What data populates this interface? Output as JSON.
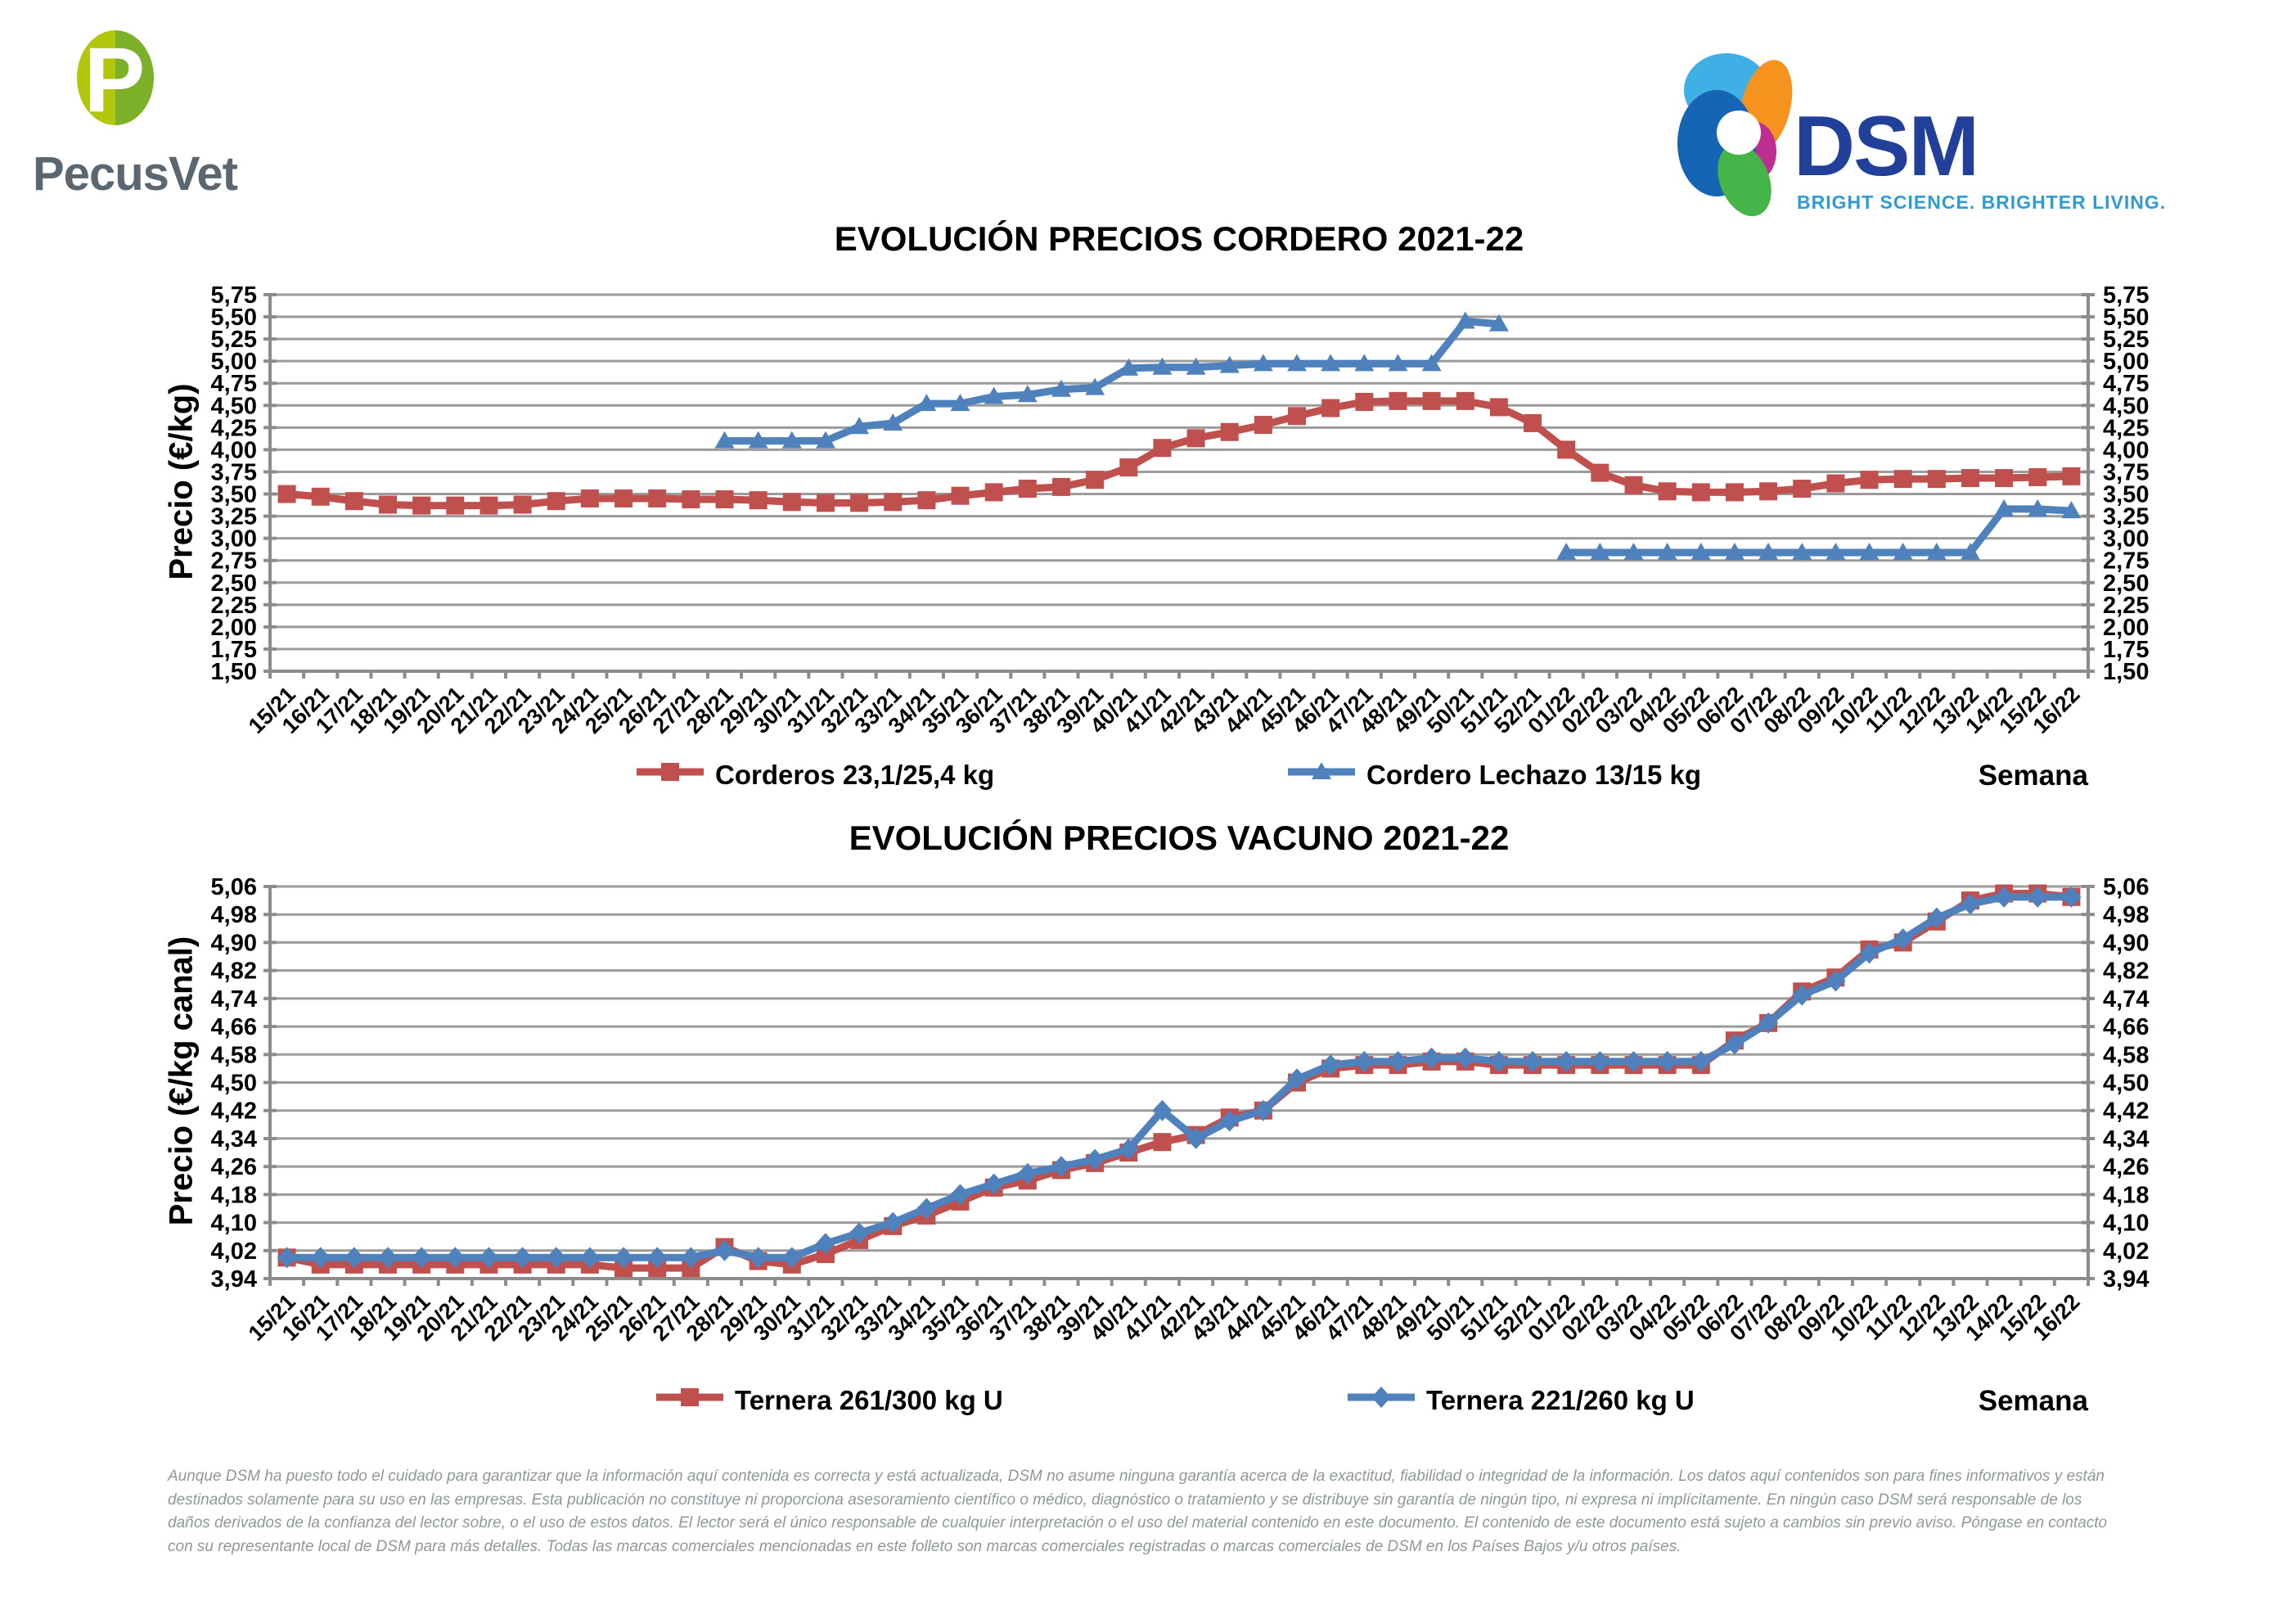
{
  "header": {
    "pecusvet": {
      "name": "PecusVet",
      "monogram": "P"
    },
    "dsm": {
      "name": "DSM",
      "tagline": "BRIGHT SCIENCE. BRIGHTER LIVING."
    }
  },
  "colors": {
    "series_red": "#C0504D",
    "series_blue": "#4F81BD",
    "grid_gray": "#9B9B9B",
    "axis_gray": "#8C8C8C",
    "dsm_blue": "#21409A",
    "dsm_cyan": "#2E9BD6",
    "pecus_gray": "#5B6770",
    "pecus_green_light": "#B2C60B",
    "pecus_green_dark": "#7CB029",
    "disclaimer_gray": "#8F979B"
  },
  "chart_data": [
    {
      "type": "line",
      "title": "EVOLUCIÓN PRECIOS CORDERO 2021-22",
      "xlabel": "Semana",
      "ylabel": "Precio (€/kg)",
      "ylim": [
        1.5,
        5.75
      ],
      "ytick_step": 0.25,
      "grid": true,
      "legend_position": "bottom",
      "categories": [
        "15/21",
        "16/21",
        "17/21",
        "18/21",
        "19/21",
        "20/21",
        "21/21",
        "22/21",
        "23/21",
        "24/21",
        "25/21",
        "26/21",
        "27/21",
        "28/21",
        "29/21",
        "30/21",
        "31/21",
        "32/21",
        "33/21",
        "34/21",
        "35/21",
        "36/21",
        "37/21",
        "38/21",
        "39/21",
        "40/21",
        "41/21",
        "42/21",
        "43/21",
        "44/21",
        "45/21",
        "46/21",
        "47/21",
        "48/21",
        "49/21",
        "50/21",
        "51/21",
        "52/21",
        "01/22",
        "02/22",
        "03/22",
        "04/22",
        "05/22",
        "06/22",
        "07/22",
        "08/22",
        "09/22",
        "10/22",
        "11/22",
        "12/22",
        "13/22",
        "14/22",
        "15/22",
        "16/22"
      ],
      "series": [
        {
          "name": "Corderos 23,1/25,4 kg",
          "color": "#C0504D",
          "marker": "square",
          "values": [
            3.5,
            3.47,
            3.42,
            3.38,
            3.37,
            3.37,
            3.37,
            3.38,
            3.42,
            3.45,
            3.45,
            3.45,
            3.44,
            3.44,
            3.43,
            3.41,
            3.4,
            3.4,
            3.41,
            3.43,
            3.48,
            3.52,
            3.56,
            3.58,
            3.66,
            3.8,
            4.02,
            4.13,
            4.2,
            4.28,
            4.38,
            4.47,
            4.54,
            4.55,
            4.55,
            4.55,
            4.48,
            4.3,
            4.0,
            3.74,
            3.6,
            3.53,
            3.52,
            3.52,
            3.53,
            3.56,
            3.62,
            3.66,
            3.67,
            3.67,
            3.68,
            3.68,
            3.69,
            3.7
          ]
        },
        {
          "name": "Cordero Lechazo 13/15 kg",
          "color": "#4F81BD",
          "marker": "triangle",
          "values": [
            null,
            null,
            null,
            null,
            null,
            null,
            null,
            null,
            null,
            null,
            null,
            null,
            null,
            4.1,
            4.1,
            4.1,
            4.1,
            4.26,
            4.3,
            4.52,
            4.52,
            4.6,
            4.62,
            4.68,
            4.7,
            4.92,
            4.93,
            4.93,
            4.95,
            4.97,
            4.97,
            4.97,
            4.97,
            4.97,
            4.97,
            5.45,
            5.42,
            null,
            2.84,
            2.84,
            2.84,
            2.84,
            2.84,
            2.84,
            2.84,
            2.84,
            2.84,
            2.84,
            2.84,
            2.84,
            2.84,
            3.33,
            3.33,
            3.31
          ]
        }
      ]
    },
    {
      "type": "line",
      "title": "EVOLUCIÓN PRECIOS VACUNO 2021-22",
      "xlabel": "Semana",
      "ylabel": "Precio (€/kg canal)",
      "ylim": [
        3.94,
        5.06
      ],
      "ytick_step": 0.08,
      "grid": true,
      "legend_position": "bottom",
      "categories": [
        "15/21",
        "16/21",
        "17/21",
        "18/21",
        "19/21",
        "20/21",
        "21/21",
        "22/21",
        "23/21",
        "24/21",
        "25/21",
        "26/21",
        "27/21",
        "28/21",
        "29/21",
        "30/21",
        "31/21",
        "32/21",
        "33/21",
        "34/21",
        "35/21",
        "36/21",
        "37/21",
        "38/21",
        "39/21",
        "40/21",
        "41/21",
        "42/21",
        "43/21",
        "44/21",
        "45/21",
        "46/21",
        "47/21",
        "48/21",
        "49/21",
        "50/21",
        "51/21",
        "52/21",
        "01/22",
        "02/22",
        "03/22",
        "04/22",
        "05/22",
        "06/22",
        "07/22",
        "08/22",
        "09/22",
        "10/22",
        "11/22",
        "12/22",
        "13/22",
        "14/22",
        "15/22",
        "16/22"
      ],
      "series": [
        {
          "name": "Ternera 261/300 kg U",
          "color": "#C0504D",
          "marker": "square",
          "values": [
            4.0,
            3.98,
            3.98,
            3.98,
            3.98,
            3.98,
            3.98,
            3.98,
            3.98,
            3.98,
            3.97,
            3.97,
            3.97,
            4.03,
            3.99,
            3.98,
            4.01,
            4.05,
            4.09,
            4.12,
            4.16,
            4.2,
            4.22,
            4.25,
            4.27,
            4.3,
            4.33,
            4.35,
            4.4,
            4.42,
            4.5,
            4.54,
            4.55,
            4.55,
            4.56,
            4.56,
            4.55,
            4.55,
            4.55,
            4.55,
            4.55,
            4.55,
            4.55,
            4.62,
            4.67,
            4.76,
            4.8,
            4.88,
            4.9,
            4.96,
            5.02,
            5.04,
            5.04,
            5.03
          ]
        },
        {
          "name": "Ternera 221/260 kg U",
          "color": "#4F81BD",
          "marker": "diamond",
          "values": [
            4.0,
            4.0,
            4.0,
            4.0,
            4.0,
            4.0,
            4.0,
            4.0,
            4.0,
            4.0,
            4.0,
            4.0,
            4.0,
            4.02,
            4.0,
            4.0,
            4.04,
            4.07,
            4.1,
            4.14,
            4.18,
            4.21,
            4.24,
            4.26,
            4.28,
            4.31,
            4.42,
            4.34,
            4.39,
            4.42,
            4.51,
            4.55,
            4.56,
            4.56,
            4.57,
            4.57,
            4.56,
            4.56,
            4.56,
            4.56,
            4.56,
            4.56,
            4.56,
            4.61,
            4.67,
            4.75,
            4.79,
            4.87,
            4.91,
            4.97,
            5.01,
            5.03,
            5.03,
            5.03
          ]
        }
      ]
    }
  ],
  "disclaimer": {
    "lines": [
      "Aunque DSM ha puesto todo el cuidado para garantizar que la información aquí contenida es correcta y está actualizada, DSM no asume ninguna garantía acerca de la exactitud, fiabilidad o integridad de la información. Los datos aquí contenidos son para fines informativos y están",
      "destinados solamente para su uso en las empresas. Esta publicación no constituye ni proporciona asesoramiento científico o médico, diagnóstico o tratamiento y se distribuye sin garantía de ningún tipo, ni expresa ni implícitamente. En ningún caso DSM será responsable de los",
      "daños derivados de la confianza del lector sobre, o el uso de estos datos. El lector será el único responsable de cualquier interpretación o el uso del material contenido en este documento. El contenido de este documento está sujeto a cambios sin previo aviso. Póngase en contacto",
      "con su representante local de DSM para más detalles. Todas las marcas comerciales mencionadas en este folleto son marcas comerciales registradas o marcas comerciales de DSM en los Países Bajos y/u otros países."
    ]
  }
}
